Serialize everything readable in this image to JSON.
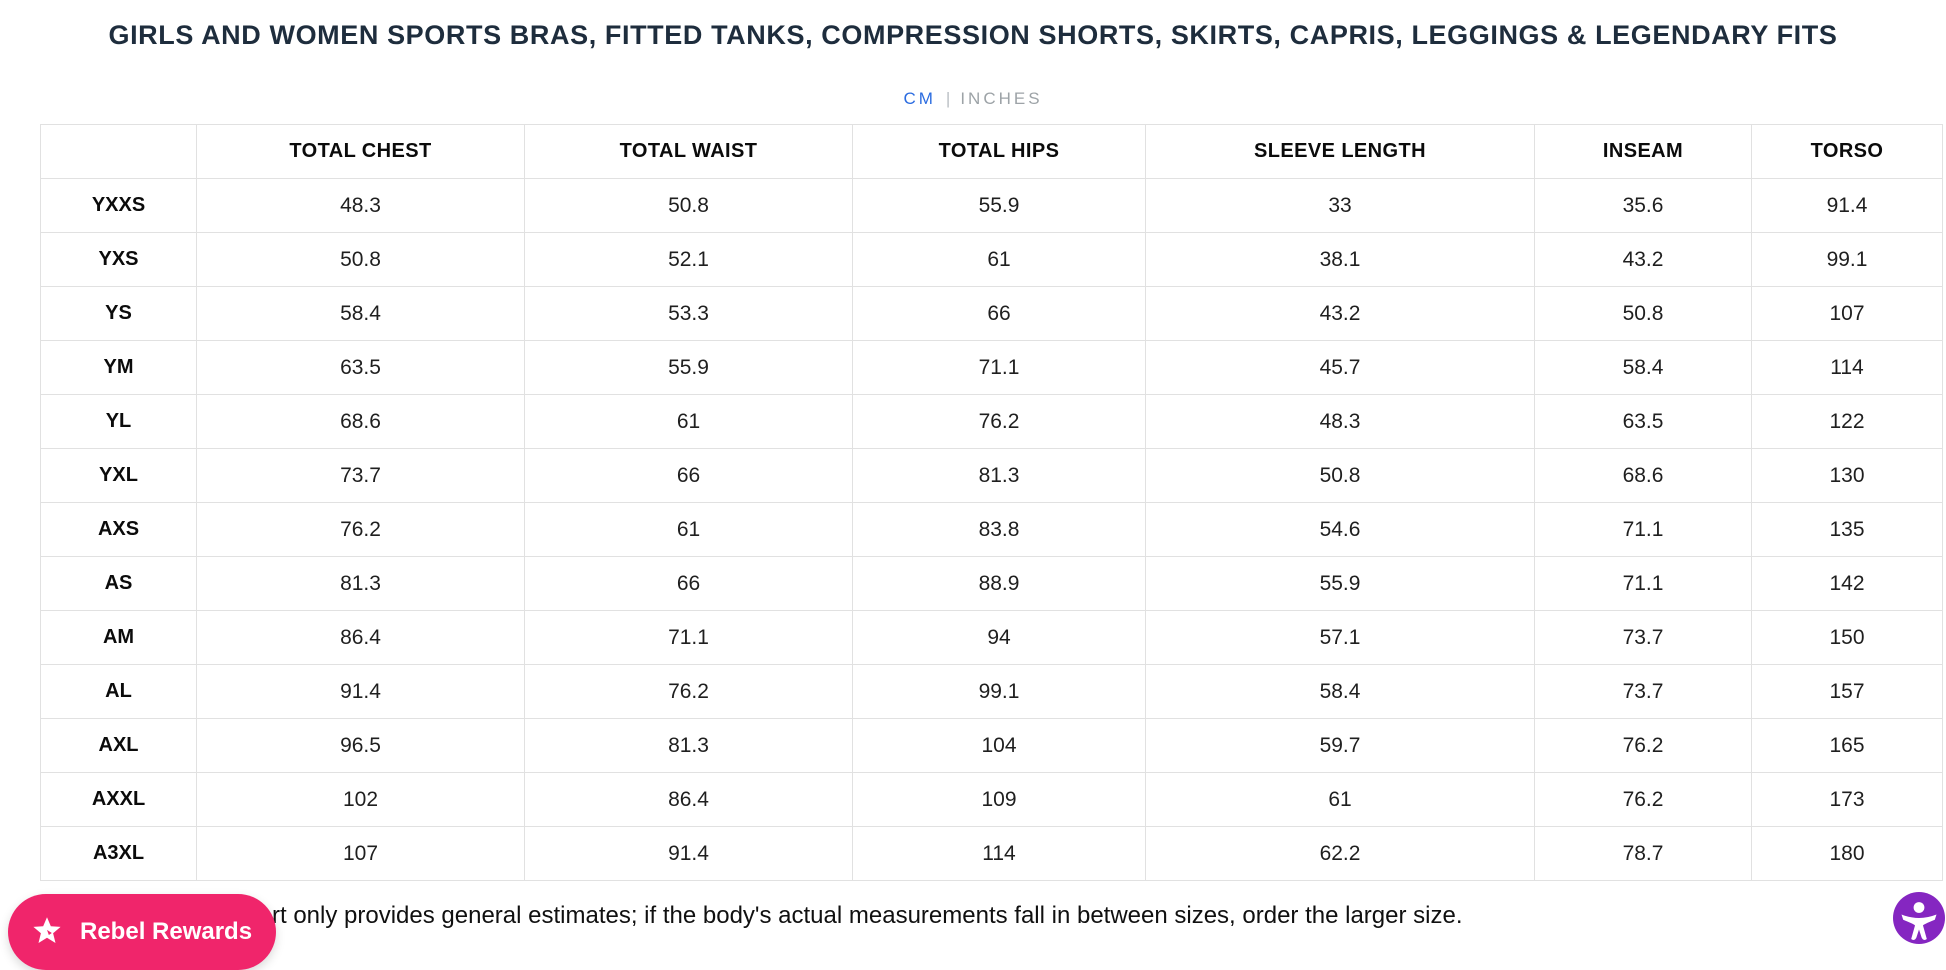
{
  "header": {
    "title": "GIRLS AND WOMEN SPORTS BRAS, FITTED TANKS, COMPRESSION SHORTS, SKIRTS, CAPRIS, LEGGINGS & LEGENDARY FITS",
    "unit_toggle": {
      "options": [
        {
          "label": "CM",
          "active": true
        },
        {
          "label": "INCHES",
          "active": false
        }
      ],
      "separator": "|"
    }
  },
  "size_table": {
    "selected_unit": "CM",
    "columns": [
      "",
      "TOTAL CHEST",
      "TOTAL WAIST",
      "TOTAL HIPS",
      "SLEEVE LENGTH",
      "INSEAM",
      "TORSO"
    ],
    "rows": [
      {
        "size": "YXXS",
        "values": [
          "48.3",
          "50.8",
          "55.9",
          "33",
          "35.6",
          "91.4"
        ]
      },
      {
        "size": "YXS",
        "values": [
          "50.8",
          "52.1",
          "61",
          "38.1",
          "43.2",
          "99.1"
        ]
      },
      {
        "size": "YS",
        "values": [
          "58.4",
          "53.3",
          "66",
          "43.2",
          "50.8",
          "107"
        ]
      },
      {
        "size": "YM",
        "values": [
          "63.5",
          "55.9",
          "71.1",
          "45.7",
          "58.4",
          "114"
        ]
      },
      {
        "size": "YL",
        "values": [
          "68.6",
          "61",
          "76.2",
          "48.3",
          "63.5",
          "122"
        ]
      },
      {
        "size": "YXL",
        "values": [
          "73.7",
          "66",
          "81.3",
          "50.8",
          "68.6",
          "130"
        ]
      },
      {
        "size": "AXS",
        "values": [
          "76.2",
          "61",
          "83.8",
          "54.6",
          "71.1",
          "135"
        ]
      },
      {
        "size": "AS",
        "values": [
          "81.3",
          "66",
          "88.9",
          "55.9",
          "71.1",
          "142"
        ]
      },
      {
        "size": "AM",
        "values": [
          "86.4",
          "71.1",
          "94",
          "57.1",
          "73.7",
          "150"
        ]
      },
      {
        "size": "AL",
        "values": [
          "91.4",
          "76.2",
          "99.1",
          "58.4",
          "73.7",
          "157"
        ]
      },
      {
        "size": "AXL",
        "values": [
          "96.5",
          "81.3",
          "104",
          "59.7",
          "76.2",
          "165"
        ]
      },
      {
        "size": "AXXL",
        "values": [
          "102",
          "86.4",
          "109",
          "61",
          "76.2",
          "173"
        ]
      },
      {
        "size": "A3XL",
        "values": [
          "107",
          "91.4",
          "114",
          "62.2",
          "78.7",
          "180"
        ]
      }
    ]
  },
  "footer": {
    "note_visible": "rt only provides general estimates; if the body's actual measurements fall in between sizes, order the larger size."
  },
  "widgets": {
    "rewards_button_label": "Rebel Rewards",
    "rewards_icon": "star-icon",
    "accessibility_icon": "accessibility-person-icon"
  },
  "colors": {
    "accent_blue": "#2B6CE0",
    "inactive_gray": "#9DA3A7",
    "title_navy": "#1E2D3D",
    "rewards_pink": "#F0256B",
    "accessibility_purple": "#8526C1",
    "table_border": "#E1E1E1"
  }
}
